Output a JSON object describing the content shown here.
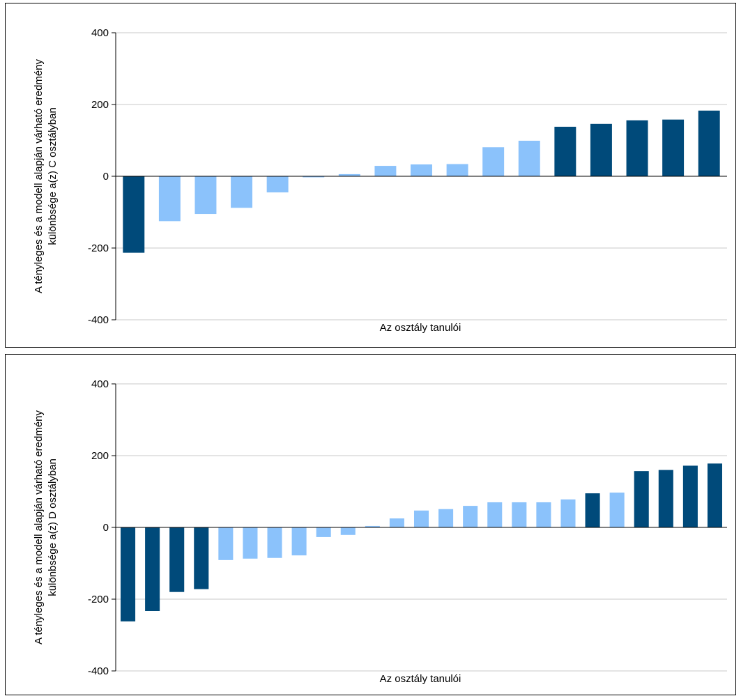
{
  "colors": {
    "dark": "#004a7a",
    "light": "#8bc2fb",
    "grid": "#c8c8c8",
    "zero_line": "#000000"
  },
  "chart_data": [
    {
      "type": "bar",
      "ylabel_lines": [
        "A tényleges és a modell alapján várható eredmény",
        "különbsége a(z) C osztályban"
      ],
      "xlabel": "Az osztály tanulói",
      "ylim": [
        -400,
        400
      ],
      "yticks": [
        "400",
        "200",
        "0",
        "-200",
        "-400"
      ],
      "ytick_values": [
        400,
        200,
        0,
        -200,
        -400
      ],
      "grid": true,
      "values": [
        -213,
        -125,
        -105,
        -88,
        -45,
        -3,
        6,
        29,
        33,
        34,
        81,
        99,
        138,
        146,
        156,
        158,
        183
      ],
      "highlight": [
        true,
        false,
        false,
        false,
        false,
        false,
        false,
        false,
        false,
        false,
        false,
        false,
        true,
        true,
        true,
        true,
        true
      ]
    },
    {
      "type": "bar",
      "ylabel_lines": [
        "A tényleges és a modell alapján várható eredmény",
        "különbsége a(z) D osztályban"
      ],
      "xlabel": "Az osztály tanulói",
      "ylim": [
        -400,
        400
      ],
      "yticks": [
        "400",
        "200",
        "0",
        "-200",
        "-400"
      ],
      "ytick_values": [
        400,
        200,
        0,
        -200,
        -400
      ],
      "grid": true,
      "values": [
        -262,
        -233,
        -180,
        -172,
        -91,
        -87,
        -85,
        -78,
        -27,
        -21,
        4,
        25,
        47,
        51,
        60,
        70,
        70,
        70,
        78,
        95,
        97,
        157,
        160,
        172,
        178
      ],
      "highlight": [
        true,
        true,
        true,
        true,
        false,
        false,
        false,
        false,
        false,
        false,
        false,
        false,
        false,
        false,
        false,
        false,
        false,
        false,
        false,
        true,
        false,
        true,
        true,
        true,
        true
      ]
    }
  ]
}
